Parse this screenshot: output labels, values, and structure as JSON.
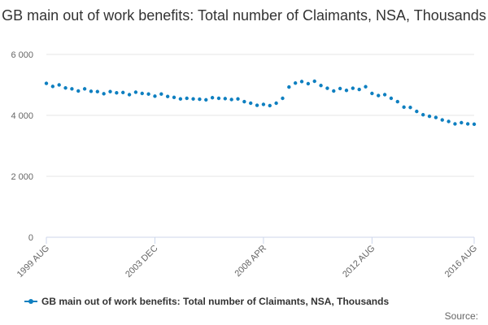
{
  "chart_data": {
    "type": "line",
    "title": "GB main out of work benefits: Total number of Claimants, NSA, Thousands",
    "ylim": [
      0,
      6000
    ],
    "yticks": [
      0,
      2000,
      4000,
      6000
    ],
    "ytick_labels": [
      "0",
      "2 000",
      "4 000",
      "6 000"
    ],
    "xtick_labels": [
      "1999 AUG",
      "2003 DEC",
      "2008 APR",
      "2012 AUG",
      "2016 AUG"
    ],
    "grid": true,
    "legend_position": "bottom",
    "series": [
      {
        "name": "GB main out of work benefits: Total number of Claimants, NSA, Thousands",
        "color": "#0e7fc0",
        "x": [
          "1999 AUG",
          "1999 NOV",
          "2000 FEB",
          "2000 MAY",
          "2000 AUG",
          "2000 NOV",
          "2001 FEB",
          "2001 MAY",
          "2001 AUG",
          "2001 NOV",
          "2002 FEB",
          "2002 MAY",
          "2002 AUG",
          "2002 NOV",
          "2003 FEB",
          "2003 MAY",
          "2003 AUG",
          "2003 DEC",
          "2004 FEB",
          "2004 MAY",
          "2004 AUG",
          "2004 NOV",
          "2005 FEB",
          "2005 MAY",
          "2005 AUG",
          "2005 NOV",
          "2006 FEB",
          "2006 MAY",
          "2006 AUG",
          "2006 NOV",
          "2007 FEB",
          "2007 MAY",
          "2007 AUG",
          "2007 NOV",
          "2008 APR",
          "2008 MAY",
          "2008 AUG",
          "2008 NOV",
          "2009 FEB",
          "2009 MAY",
          "2009 AUG",
          "2009 NOV",
          "2010 FEB",
          "2010 MAY",
          "2010 AUG",
          "2010 NOV",
          "2011 FEB",
          "2011 MAY",
          "2011 AUG",
          "2011 NOV",
          "2012 FEB",
          "2012 AUG",
          "2012 NOV",
          "2013 FEB",
          "2013 MAY",
          "2013 AUG",
          "2013 NOV",
          "2014 FEB",
          "2014 MAY",
          "2014 AUG",
          "2014 NOV",
          "2015 FEB",
          "2015 MAY",
          "2015 AUG",
          "2015 NOV",
          "2016 FEB",
          "2016 MAY",
          "2016 AUG"
        ],
        "values": [
          5050,
          4950,
          5000,
          4900,
          4870,
          4800,
          4870,
          4790,
          4780,
          4710,
          4780,
          4740,
          4750,
          4680,
          4760,
          4720,
          4700,
          4630,
          4700,
          4620,
          4590,
          4540,
          4560,
          4540,
          4530,
          4510,
          4580,
          4560,
          4550,
          4520,
          4540,
          4450,
          4400,
          4330,
          4360,
          4320,
          4400,
          4560,
          4930,
          5060,
          5110,
          5040,
          5120,
          4980,
          4890,
          4800,
          4880,
          4820,
          4890,
          4850,
          4940,
          4720,
          4650,
          4680,
          4560,
          4450,
          4270,
          4260,
          4130,
          4020,
          3970,
          3930,
          3850,
          3800,
          3720,
          3760,
          3720,
          3710
        ]
      }
    ]
  },
  "source_label": "Source:"
}
